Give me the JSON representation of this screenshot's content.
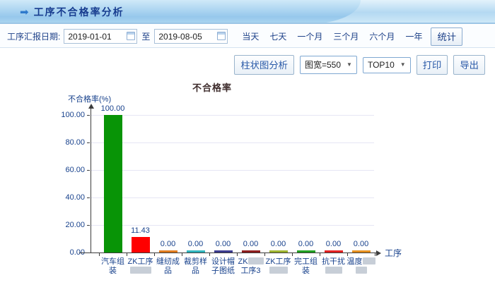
{
  "header": {
    "arrow_icon": "➡",
    "title": "工序不合格率分析"
  },
  "filter": {
    "date_label": "工序汇报日期:",
    "date_from": "2019-01-01",
    "to_label": "至",
    "date_to": "2019-08-05",
    "quick_ranges": [
      "当天",
      "七天",
      "一个月",
      "三个月",
      "六个月",
      "一年"
    ],
    "stats_button": "统计"
  },
  "toolbar": {
    "bar_analysis_button": "柱状图分析",
    "width_select_value": "图宽=550",
    "top_select_value": "TOP10",
    "caret_icon": "▼",
    "print_button": "打印",
    "export_button": "导出"
  },
  "chart_data": {
    "type": "bar",
    "title": "不合格率",
    "ylabel": "不合格率(%)",
    "xlabel": "工序",
    "ylim": [
      0,
      100
    ],
    "grid": true,
    "legend": "none",
    "ytick_labels": [
      "0.00",
      "20.00",
      "40.00",
      "60.00",
      "80.00",
      "100.00"
    ],
    "ytick_values": [
      0,
      20,
      40,
      60,
      80,
      100
    ],
    "categories": [
      "汽车组装",
      "ZK工序",
      "缝纫成品",
      "裁剪样品",
      "设计帽子图纸",
      "ZK工序3",
      "ZK工序",
      "完工组装",
      "抗干扰",
      "温度"
    ],
    "values": [
      100,
      11.43,
      0,
      0,
      0,
      0,
      0,
      0,
      0,
      0
    ],
    "value_labels": [
      "100.00",
      "11.43",
      "0.00",
      "0.00",
      "0.00",
      "0.00",
      "0.00",
      "0.00",
      "0.00",
      "0.00"
    ],
    "bar_colors": [
      "#089406",
      "#ff0000",
      "#e07c1e",
      "#30b5bd",
      "#3b3b8f",
      "#8e1e1e",
      "#9db32e",
      "#22a022",
      "#e42222",
      "#e6901e"
    ],
    "label_lines": [
      [
        [
          {
            "t": "汽车组"
          }
        ],
        [
          {
            "t": "装"
          }
        ]
      ],
      [
        [
          {
            "t": "ZK工序"
          }
        ],
        [
          {
            "r": 30
          }
        ]
      ],
      [
        [
          {
            "t": "缝纫成"
          }
        ],
        [
          {
            "t": "品"
          }
        ]
      ],
      [
        [
          {
            "t": "裁剪样"
          }
        ],
        [
          {
            "t": "品"
          }
        ]
      ],
      [
        [
          {
            "t": "设计帽"
          }
        ],
        [
          {
            "t": "子图纸"
          }
        ]
      ],
      [
        [
          {
            "t": "ZK"
          },
          {
            "r": 22
          }
        ],
        [
          {
            "t": "工序3"
          }
        ]
      ],
      [
        [
          {
            "t": "ZK工序"
          }
        ],
        [
          {
            "r": 26
          }
        ]
      ],
      [
        [
          {
            "t": "完工组"
          }
        ],
        [
          {
            "t": "装"
          }
        ]
      ],
      [
        [
          {
            "t": "抗干扰"
          }
        ],
        [
          {
            "r": 24
          }
        ]
      ],
      [
        [
          {
            "t": "温度"
          },
          {
            "r": 18
          }
        ],
        [
          {
            "r": 16
          }
        ]
      ]
    ]
  }
}
